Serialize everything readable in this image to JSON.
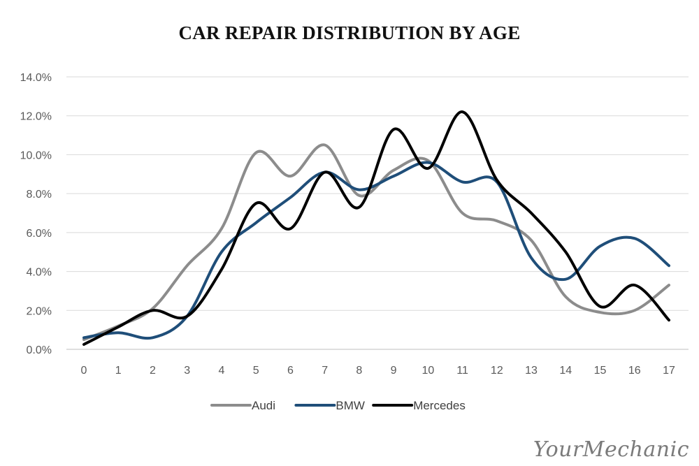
{
  "chart_data": {
    "type": "line",
    "title": "CAR REPAIR DISTRIBUTION BY AGE",
    "x": [
      0,
      1,
      2,
      3,
      4,
      5,
      6,
      7,
      8,
      9,
      10,
      11,
      12,
      13,
      14,
      15,
      16,
      17
    ],
    "x_tick_labels": [
      "0",
      "1",
      "2",
      "3",
      "4",
      "5",
      "6",
      "7",
      "8",
      "9",
      "10",
      "11",
      "12",
      "13",
      "14",
      "15",
      "16",
      "17"
    ],
    "y_tick_labels": [
      "0.0%",
      "2.0%",
      "4.0%",
      "6.0%",
      "8.0%",
      "10.0%",
      "12.0%",
      "14.0%"
    ],
    "ylim": [
      0,
      14
    ],
    "y_unit": "%",
    "grid": "horizontal",
    "legend_position": "bottom",
    "series": [
      {
        "name": "Audi",
        "color": "#8c8c8c",
        "values": [
          0.5,
          1.2,
          2.1,
          4.3,
          6.2,
          10.1,
          8.9,
          10.5,
          7.9,
          9.2,
          9.7,
          7.0,
          6.6,
          5.6,
          2.7,
          1.9,
          2.0,
          3.3
        ]
      },
      {
        "name": "BMW",
        "color": "#1f4e79",
        "values": [
          0.6,
          0.85,
          0.6,
          1.7,
          5.0,
          6.5,
          7.8,
          9.1,
          8.2,
          8.9,
          9.6,
          8.6,
          8.6,
          4.7,
          3.6,
          5.3,
          5.7,
          4.3
        ]
      },
      {
        "name": "Mercedes",
        "color": "#000000",
        "values": [
          0.25,
          1.15,
          2.0,
          1.7,
          4.1,
          7.5,
          6.2,
          9.1,
          7.3,
          11.3,
          9.3,
          12.2,
          8.7,
          7.0,
          5.0,
          2.2,
          3.3,
          1.5
        ]
      }
    ]
  },
  "watermark": "YourMechanic"
}
